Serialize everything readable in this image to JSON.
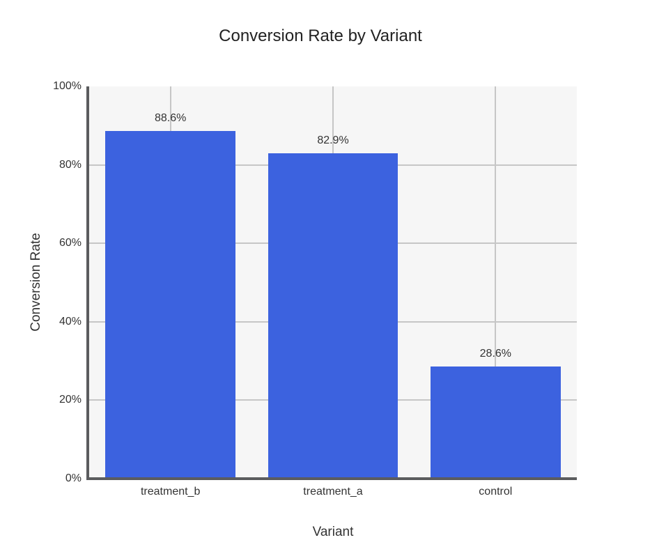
{
  "chart_data": {
    "type": "bar",
    "title": "Conversion Rate by Variant",
    "xlabel": "Variant",
    "ylabel": "Conversion Rate",
    "categories": [
      "treatment_b",
      "treatment_a",
      "control"
    ],
    "values": [
      88.6,
      82.9,
      28.6
    ],
    "value_labels": [
      "88.6%",
      "82.9%",
      "28.6%"
    ],
    "y_ticks": [
      {
        "value": 0,
        "label": "0%"
      },
      {
        "value": 20,
        "label": "20%"
      },
      {
        "value": 40,
        "label": "40%"
      },
      {
        "value": 60,
        "label": "60%"
      },
      {
        "value": 80,
        "label": "80%"
      },
      {
        "value": 100,
        "label": "100%"
      }
    ],
    "ylim": [
      0,
      100
    ],
    "grid": true,
    "legend": "none",
    "bar_width_fraction": 0.8,
    "colors": {
      "bar": "#3c62df",
      "plot_background": "#f6f6f6",
      "page_background": "#ffffff",
      "gridline": "#c6c6c6",
      "axis_line": "#5b5c5e",
      "title_text": "#222222",
      "label_text": "#333333"
    }
  }
}
